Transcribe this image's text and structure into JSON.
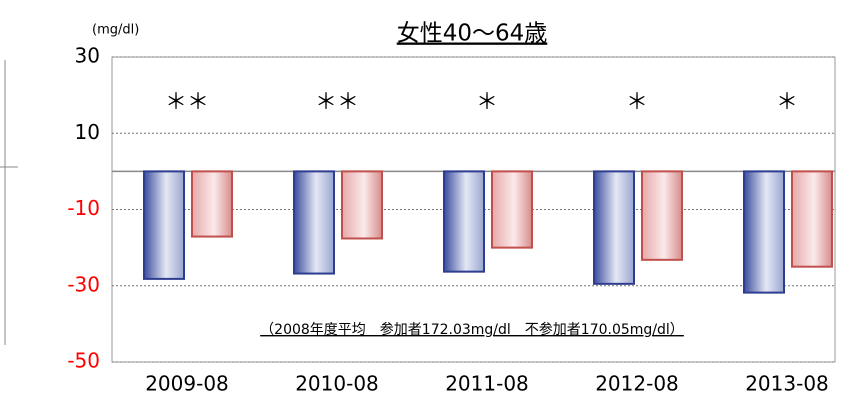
{
  "chart_data": {
    "type": "bar",
    "title": "女性40～64歳",
    "unit_label": "(mg/dl)",
    "note": "（2008年度平均　参加者172.03mg/dl　不参加者170.05mg/dl）",
    "categories": [
      "2009-08",
      "2010-08",
      "2011-08",
      "2012-08",
      "2013-08"
    ],
    "series": [
      {
        "color": "#2e3d8f",
        "values": [
          -28.2,
          -26.8,
          -26.3,
          -29.5,
          -31.8
        ]
      },
      {
        "color": "#c0504d",
        "values": [
          -17.1,
          -17.6,
          -20,
          -23.2,
          -25
        ]
      }
    ],
    "annotations": [
      "＊＊",
      "＊＊",
      "＊",
      "＊",
      "＊"
    ],
    "ylim": [
      -50,
      30
    ],
    "yticks": [
      30,
      10,
      -10,
      -30,
      -50
    ],
    "grid": true,
    "tick_label_color": "#000000",
    "negative_tick_label_color": "#ff0000"
  }
}
